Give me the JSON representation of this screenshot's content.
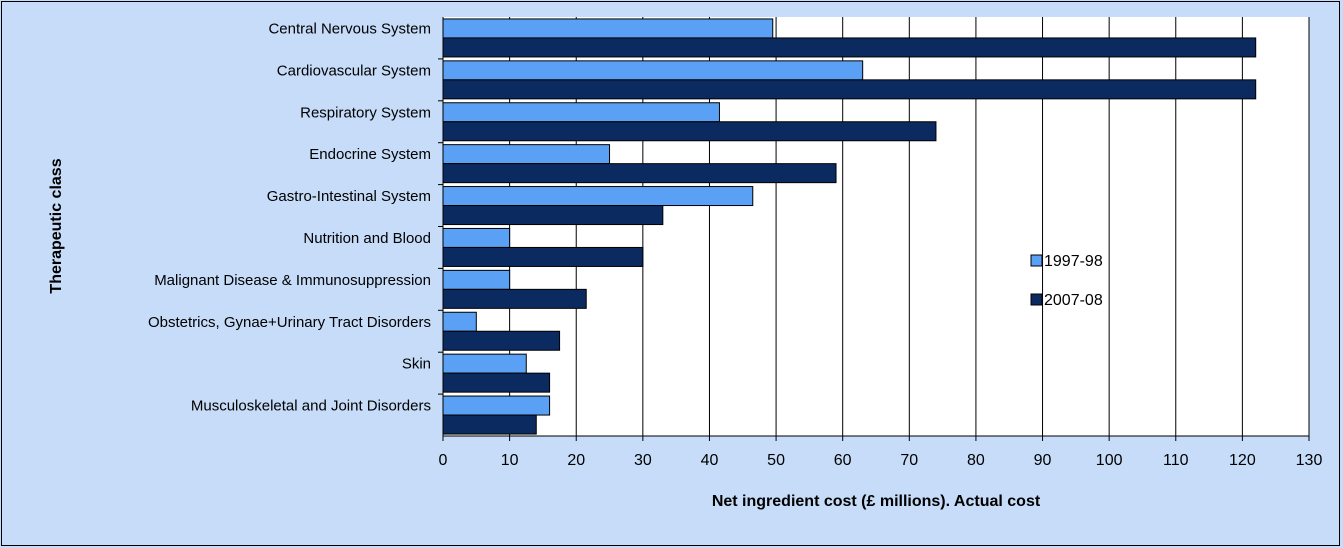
{
  "chart_data": {
    "type": "bar",
    "orientation": "horizontal",
    "categories": [
      "Central Nervous System",
      "Cardiovascular System",
      "Respiratory System",
      "Endocrine System",
      "Gastro-Intestinal System",
      "Nutrition and Blood",
      "Malignant Disease & Immunosuppression",
      "Obstetrics, Gynae+Urinary Tract Disorders",
      "Skin",
      "Musculoskeletal and Joint Disorders"
    ],
    "series": [
      {
        "name": "1997-98",
        "color": "#5aa1f5",
        "values": [
          49.5,
          63,
          41.5,
          25,
          46.5,
          10,
          10,
          5,
          12.5,
          16
        ]
      },
      {
        "name": "2007-08",
        "color": "#0b2a60",
        "values": [
          122,
          122,
          74,
          59,
          33,
          30,
          21.5,
          17.5,
          16,
          14
        ]
      }
    ],
    "xlabel": "Net ingredient cost (£ millions). Actual cost",
    "ylabel": "Therapeutic class",
    "xlim": [
      0,
      130
    ],
    "xticks": [
      "0",
      "10",
      "20",
      "30",
      "40",
      "50",
      "60",
      "70",
      "80",
      "90",
      "100",
      "110",
      "120",
      "130"
    ],
    "grid": "vertical",
    "legend": "right"
  }
}
